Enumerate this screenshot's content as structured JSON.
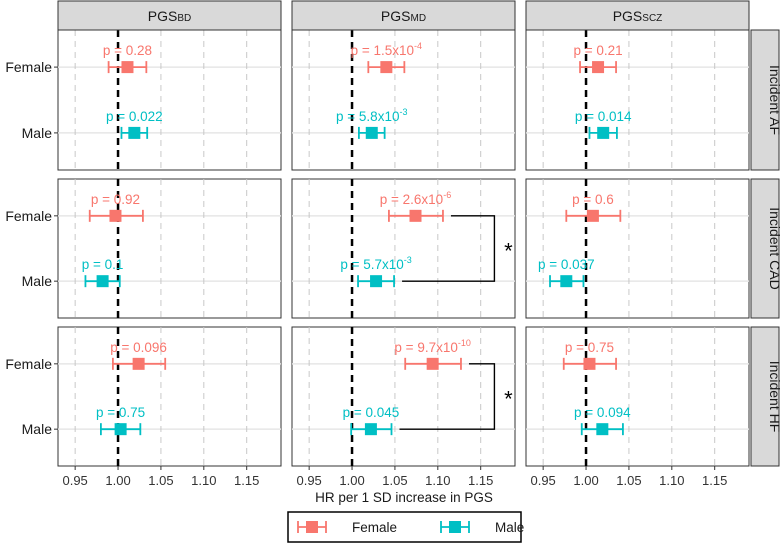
{
  "chart_data": {
    "type": "forest",
    "xlabel": "HR per 1 SD increase in PGS",
    "xlim": [
      0.93,
      1.19
    ],
    "xticks": [
      0.95,
      1.0,
      1.05,
      1.1,
      1.15
    ],
    "xtick_labels": [
      "0.95",
      "1.00",
      "1.05",
      "1.10",
      "1.15"
    ],
    "reference_line": 1.0,
    "columns": [
      {
        "key": "BD",
        "label": "PGS",
        "sub": "BD"
      },
      {
        "key": "MD",
        "label": "PGS",
        "sub": "MD"
      },
      {
        "key": "SCZ",
        "label": "PGS",
        "sub": "SCZ"
      }
    ],
    "rows": [
      {
        "key": "AF",
        "label": "Incident AF"
      },
      {
        "key": "CAD",
        "label": "Incident CAD"
      },
      {
        "key": "HF",
        "label": "Incident HF"
      }
    ],
    "groups": [
      {
        "name": "Female",
        "color": "#F8766D"
      },
      {
        "name": "Male",
        "color": "#00BFC4"
      }
    ],
    "points": [
      {
        "row": "AF",
        "col": "BD",
        "group": "Female",
        "hr": 1.011,
        "lo": 0.989,
        "hi": 1.033,
        "p": "0.28"
      },
      {
        "row": "AF",
        "col": "BD",
        "group": "Male",
        "hr": 1.019,
        "lo": 1.004,
        "hi": 1.034,
        "p": "0.022"
      },
      {
        "row": "AF",
        "col": "MD",
        "group": "Female",
        "hr": 1.04,
        "lo": 1.019,
        "hi": 1.061,
        "p": "1.5x10",
        "pexp": "-4"
      },
      {
        "row": "AF",
        "col": "MD",
        "group": "Male",
        "hr": 1.023,
        "lo": 1.008,
        "hi": 1.038,
        "p": "5.8x10",
        "pexp": "-3"
      },
      {
        "row": "AF",
        "col": "SCZ",
        "group": "Female",
        "hr": 1.014,
        "lo": 0.993,
        "hi": 1.035,
        "p": "0.21"
      },
      {
        "row": "AF",
        "col": "SCZ",
        "group": "Male",
        "hr": 1.02,
        "lo": 1.004,
        "hi": 1.036,
        "p": "0.014"
      },
      {
        "row": "CAD",
        "col": "BD",
        "group": "Female",
        "hr": 0.997,
        "lo": 0.967,
        "hi": 1.029,
        "p": "0.92"
      },
      {
        "row": "CAD",
        "col": "BD",
        "group": "Male",
        "hr": 0.982,
        "lo": 0.962,
        "hi": 1.002,
        "p": "0.1"
      },
      {
        "row": "CAD",
        "col": "MD",
        "group": "Female",
        "hr": 1.074,
        "lo": 1.043,
        "hi": 1.106,
        "p": "2.6x10",
        "pexp": "-6"
      },
      {
        "row": "CAD",
        "col": "MD",
        "group": "Male",
        "hr": 1.028,
        "lo": 1.007,
        "hi": 1.049,
        "p": "5.7x10",
        "pexp": "-3"
      },
      {
        "row": "CAD",
        "col": "SCZ",
        "group": "Female",
        "hr": 1.008,
        "lo": 0.977,
        "hi": 1.04,
        "p": "0.6"
      },
      {
        "row": "CAD",
        "col": "SCZ",
        "group": "Male",
        "hr": 0.977,
        "lo": 0.958,
        "hi": 0.997,
        "p": "0.037"
      },
      {
        "row": "HF",
        "col": "BD",
        "group": "Female",
        "hr": 1.024,
        "lo": 0.994,
        "hi": 1.055,
        "p": "0.096"
      },
      {
        "row": "HF",
        "col": "BD",
        "group": "Male",
        "hr": 1.003,
        "lo": 0.98,
        "hi": 1.026,
        "p": "0.75"
      },
      {
        "row": "HF",
        "col": "MD",
        "group": "Female",
        "hr": 1.094,
        "lo": 1.062,
        "hi": 1.127,
        "p": "9.7x10",
        "pexp": "-10"
      },
      {
        "row": "HF",
        "col": "MD",
        "group": "Male",
        "hr": 1.022,
        "lo": 0.999,
        "hi": 1.046,
        "p": "0.045"
      },
      {
        "row": "HF",
        "col": "SCZ",
        "group": "Female",
        "hr": 1.004,
        "lo": 0.974,
        "hi": 1.035,
        "p": "0.75"
      },
      {
        "row": "HF",
        "col": "SCZ",
        "group": "Male",
        "hr": 1.019,
        "lo": 0.995,
        "hi": 1.043,
        "p": "0.094"
      }
    ],
    "significance": [
      {
        "row": "CAD",
        "col": "MD",
        "label": "*"
      },
      {
        "row": "HF",
        "col": "MD",
        "label": "*"
      }
    ],
    "legend": {
      "position": "bottom",
      "items": [
        "Female",
        "Male"
      ]
    },
    "grid": true
  }
}
